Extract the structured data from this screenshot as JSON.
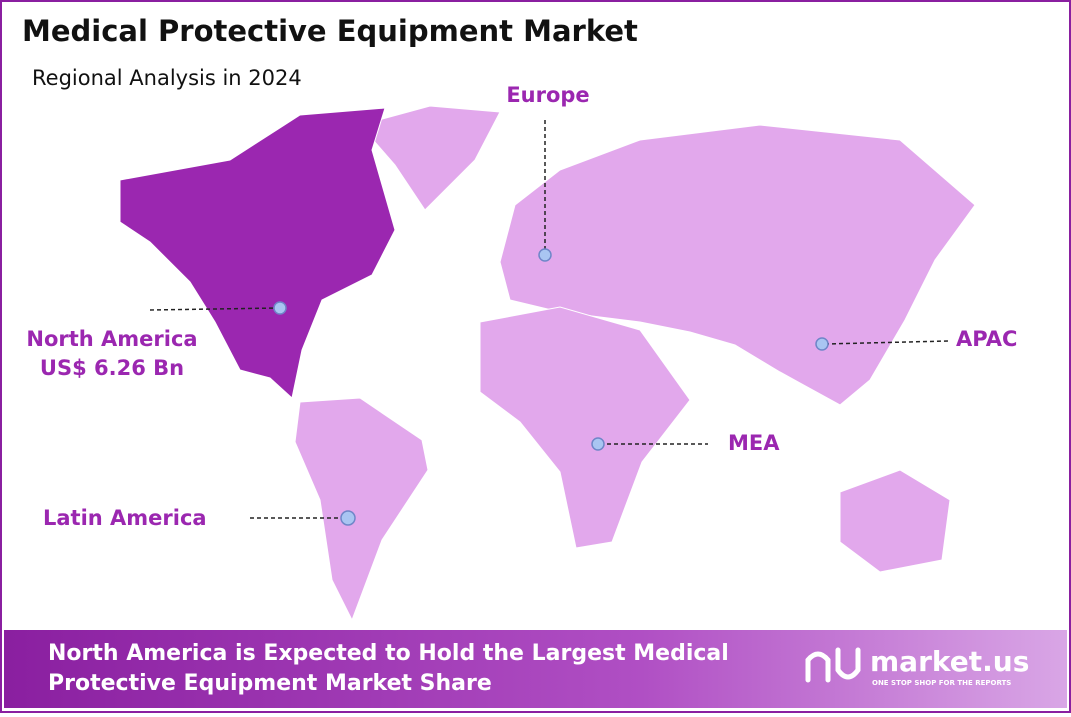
{
  "header": {
    "title": "Medical Protective Equipment Market",
    "subtitle": "Regional Analysis in 2024"
  },
  "regions": [
    {
      "label": "North America",
      "value": "US$ 6.26 Bn"
    },
    {
      "label": "Europe"
    },
    {
      "label": "APAC"
    },
    {
      "label": "MEA"
    },
    {
      "label": "Latin America"
    }
  ],
  "footer": {
    "headline": [
      "North America is Expected to Hold the Largest Medical",
      "Protective Equipment Market Share"
    ],
    "brand": "market.us",
    "tagline": "ONE STOP SHOP FOR THE REPORTS"
  }
}
